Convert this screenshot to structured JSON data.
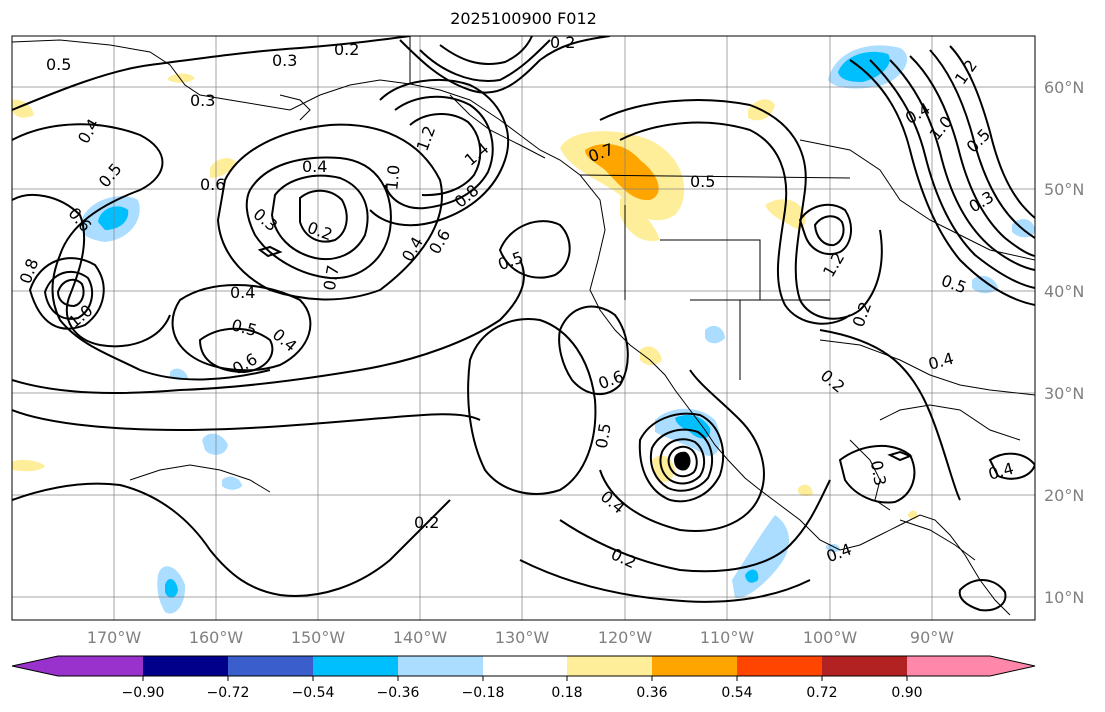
{
  "title": "2025100900 F012",
  "map": {
    "lon_labels": [
      "170°W",
      "160°W",
      "150°W",
      "140°W",
      "130°W",
      "120°W",
      "110°W",
      "100°W",
      "90°W"
    ],
    "lat_labels": [
      "60°N",
      "50°N",
      "40°N",
      "30°N",
      "20°N",
      "10°N"
    ],
    "contour_labels": [
      "0.2",
      "0.3",
      "0.5",
      "0.3",
      "0.4",
      "0.5",
      "0.6",
      "0.6",
      "0.8",
      "1.0",
      "0.4",
      "0.4",
      "0.3",
      "0.2",
      "0.7",
      "0.4",
      "0.5",
      "0.6",
      "0.4",
      "1.0",
      "1.2",
      "1.4",
      "0.8",
      "0.6",
      "0.5",
      "0.7",
      "0.5",
      "0.6",
      "0.5",
      "0.4",
      "0.2",
      "0.2",
      "0.4",
      "1.2",
      "1.0",
      "0.5",
      "0.3",
      "1.2",
      "0.2",
      "0.5",
      "0.4",
      "0.2",
      "0.3",
      "0.4",
      "0.4",
      "0.2"
    ],
    "colors": {
      "land_outline": "#000000",
      "positive_1": "#ffee99",
      "positive_2": "#ffa500",
      "negative_1": "#aaddff",
      "negative_2": "#00bfff"
    }
  },
  "colorbar": {
    "ticks": [
      "−0.90",
      "−0.72",
      "−0.54",
      "−0.36",
      "−0.18",
      "0.18",
      "0.36",
      "0.54",
      "0.72",
      "0.90"
    ],
    "colors": [
      "#9932cc",
      "#00008b",
      "#3a5fcd",
      "#00bfff",
      "#aaddff",
      "#ffffff",
      "#ffee99",
      "#ffa500",
      "#ff4500",
      "#b22222",
      "#ff88aa"
    ]
  }
}
